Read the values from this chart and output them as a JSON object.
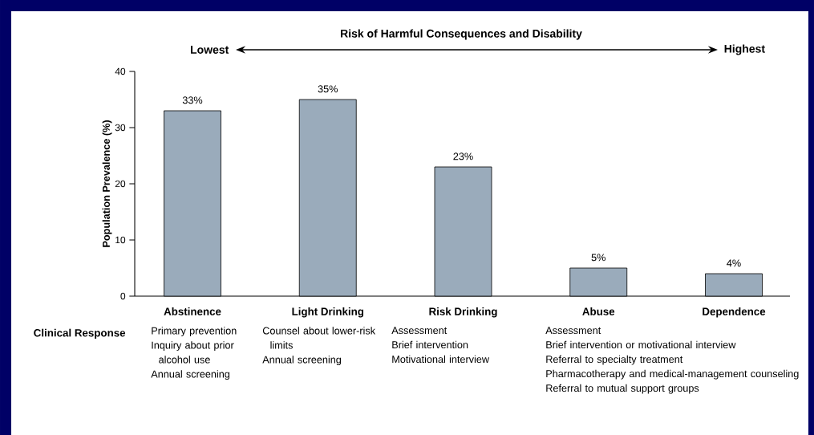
{
  "chart_data": {
    "type": "bar",
    "title": "Risk of Harmful Consequences and Disability",
    "ylabel": "Population Prevalence (%)",
    "categories": [
      "Abstinence",
      "Light Drinking",
      "Risk Drinking",
      "Abuse",
      "Dependence"
    ],
    "values": [
      33,
      35,
      23,
      5,
      4
    ],
    "color": "#9aabbb",
    "value_labels": [
      "33%",
      "35%",
      "23%",
      "5%",
      "4%"
    ],
    "ylim": [
      0,
      40
    ],
    "yticks": [
      0,
      10,
      20,
      30,
      40
    ],
    "annotations": [
      "Lowest",
      "Highest",
      "Clinical Response",
      "Primary prevention",
      "Inquiry about prior alcohol use",
      "Annual screening",
      "Counsel about lower-risk limits",
      "Annual screening",
      "Assessment",
      "Brief intervention",
      "Motivational interview",
      "Assessment",
      "Brief intervention or motivational interview",
      "Referral to specialty treatment",
      "Pharmacotherapy and medical-management counseling",
      "Referral to mutual support groups"
    ]
  }
}
